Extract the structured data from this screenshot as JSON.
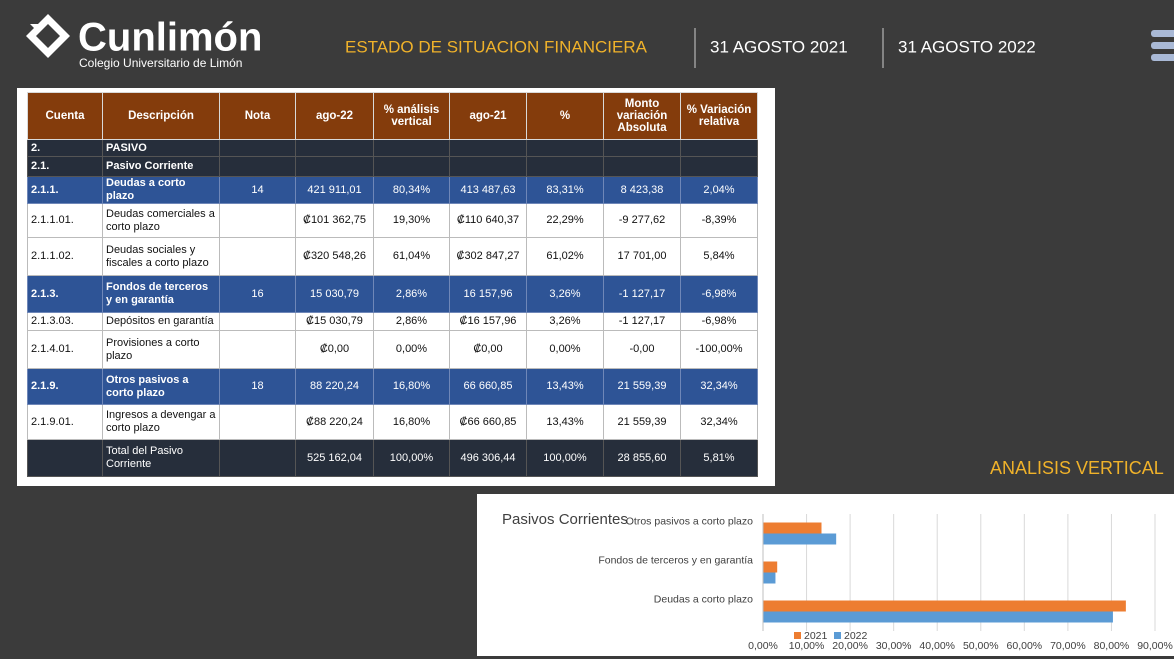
{
  "header": {
    "logo_name": "Cunlimón",
    "logo_subtitle": "Colegio Universitario de Limón",
    "title": "ESTADO DE SITUACION FINANCIERA",
    "date_1": "31 AGOSTO 2021",
    "date_2": "31 AGOSTO 2022"
  },
  "table": {
    "columns": [
      "Cuenta",
      "Descripción",
      "Nota",
      "ago-22",
      "% análisis vertical",
      "ago-21",
      "%",
      "Monto variación Absoluta",
      "% Variación relativa"
    ],
    "rows": [
      [
        "2.",
        "PASIVO",
        null,
        null,
        null,
        null,
        null,
        null,
        null
      ],
      [
        "2.1.",
        "Pasivo Corriente",
        null,
        null,
        null,
        null,
        null,
        null,
        null
      ],
      [
        "2.1.1.",
        "Deudas a corto plazo",
        "14",
        "421 911,01",
        "80,34%",
        "413 487,63",
        "83,31%",
        "8 423,38",
        "2,04%"
      ],
      [
        "2.1.1.01.",
        "Deudas comerciales a corto plazo",
        null,
        "₡101 362,75",
        "19,30%",
        "₡110 640,37",
        "22,29%",
        "-9 277,62",
        "-8,39%"
      ],
      [
        "2.1.1.02.",
        "Deudas sociales y fiscales a corto plazo",
        null,
        "₡320 548,26",
        "61,04%",
        "₡302 847,27",
        "61,02%",
        "17 701,00",
        "5,84%"
      ],
      [
        "2.1.3.",
        "Fondos de terceros y en garantía",
        "16",
        "15 030,79",
        "2,86%",
        "16 157,96",
        "3,26%",
        "-1 127,17",
        "-6,98%"
      ],
      [
        "2.1.3.03.",
        "Depósitos en garantía",
        null,
        "₡15 030,79",
        "2,86%",
        "₡16 157,96",
        "3,26%",
        "-1 127,17",
        "-6,98%"
      ],
      [
        "2.1.4.01.",
        "Provisiones a corto plazo",
        null,
        "₡0,00",
        "0,00%",
        "₡0,00",
        "0,00%",
        "-0,00",
        "-100,00%"
      ],
      [
        "2.1.9.",
        "Otros pasivos a corto plazo",
        "18",
        "88 220,24",
        "16,80%",
        "66 660,85",
        "13,43%",
        "21 559,39",
        "32,34%"
      ],
      [
        "2.1.9.01.",
        "Ingresos a devengar a corto plazo",
        null,
        "₡88 220,24",
        "16,80%",
        "₡66 660,85",
        "13,43%",
        "21 559,39",
        "32,34%"
      ],
      [
        null,
        "Total del Pasivo Corriente",
        null,
        "525 162,04",
        "100,00%",
        "496 306,44",
        "100,00%",
        "28 855,60",
        "5,81%"
      ]
    ]
  },
  "section_label": "ANALISIS VERTICAL",
  "chart_data": {
    "type": "hbar",
    "title": "Pasivos Corrientes",
    "categories": [
      "Deudas a corto plazo",
      "Fondos de terceros y en garantía",
      "Otros pasivos a corto plazo"
    ],
    "series": [
      {
        "name": "2021",
        "color": "#ed7d31",
        "values": [
          83.31,
          3.26,
          13.43
        ]
      },
      {
        "name": "2022",
        "color": "#5b9bd5",
        "values": [
          80.34,
          2.86,
          16.8
        ]
      }
    ],
    "xlim": [
      0,
      90
    ],
    "xticks": [
      {
        "value": 0,
        "label": "0,00%"
      },
      {
        "value": 10,
        "label": "10,00%"
      },
      {
        "value": 20,
        "label": "20,00%"
      },
      {
        "value": 30,
        "label": "30,00%"
      },
      {
        "value": 40,
        "label": "40,00%"
      },
      {
        "value": 50,
        "label": "50,00%"
      },
      {
        "value": 60,
        "label": "60,00%"
      },
      {
        "value": 70,
        "label": "70,00%"
      },
      {
        "value": 80,
        "label": "80,00%"
      },
      {
        "value": 90,
        "label": "90,00%"
      }
    ],
    "grid": true,
    "legend": "bottom"
  }
}
